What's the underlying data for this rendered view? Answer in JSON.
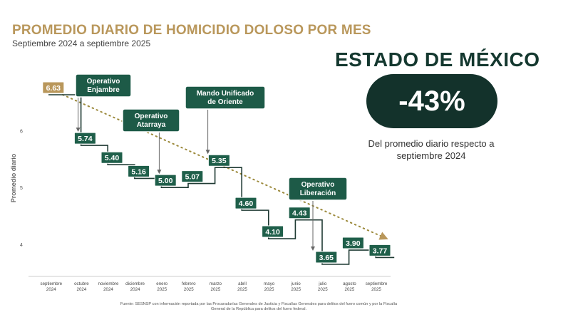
{
  "header": {
    "title": "PROMEDIO DIARIO DE HOMICIDIO DOLOSO POR MES",
    "subtitle": "Septiembre 2024 a septiembre 2025"
  },
  "summary": {
    "state": "ESTADO DE MÉXICO",
    "change": "-43%",
    "caption": "Del promedio diario respecto a septiembre 2024"
  },
  "source": "Fuente: SESNSP con información reportada por las Procuradurías Generales de Justicia y Fiscalías Generales para delitos del fuero común y por la Fiscalía General de la República para delitos del fuero federal.",
  "chart_data": {
    "type": "line",
    "step": true,
    "ylabel": "Promedio diario",
    "yticks": [
      "4",
      "5",
      "6"
    ],
    "ylim": [
      3.5,
      6.8
    ],
    "trend_line": "dotted",
    "categories": [
      "septiembre 2024",
      "octubre 2024",
      "noviembre 2024",
      "diciembre 2024",
      "enero 2025",
      "febrero 2025",
      "marzo 2025",
      "abril 2025",
      "mayo 2025",
      "junio 2025",
      "julio 2025",
      "agosto 2025",
      "septiembre 2025"
    ],
    "values": [
      6.63,
      5.74,
      5.4,
      5.16,
      5.0,
      5.07,
      5.35,
      4.6,
      4.1,
      4.43,
      3.65,
      3.9,
      3.77
    ],
    "labels": [
      "6.63",
      "5.74",
      "5.40",
      "5.16",
      "5.00",
      "5.07",
      "5.35",
      "4.60",
      "4.10",
      "4.43",
      "3.65",
      "3.90",
      "3.77"
    ],
    "annotations": [
      {
        "text": [
          "Operativo",
          "Enjambre"
        ],
        "index": 1
      },
      {
        "text": [
          "Operativo",
          "Atarraya"
        ],
        "index": 4
      },
      {
        "text": [
          "Mando Unificado",
          "de Oriente"
        ],
        "index": 6
      },
      {
        "text": [
          "Operativo",
          "Liberación"
        ],
        "index": 10
      }
    ],
    "colors": {
      "step": "#1f3a33",
      "label_bg": "#1f5f4a",
      "first_label_bg": "#b9975b",
      "annotation_bg": "#1d5a47",
      "trend": "#9c8a3c"
    }
  }
}
